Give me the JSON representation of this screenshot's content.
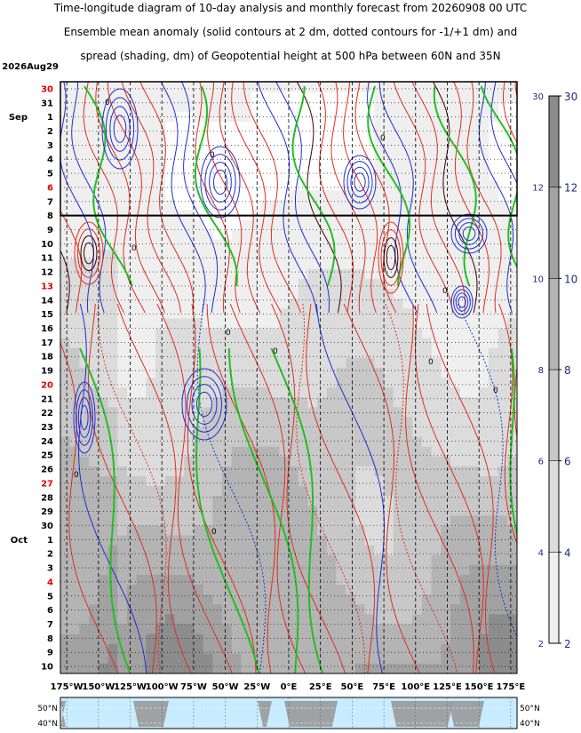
{
  "titles": [
    "Time-longitude diagram of 10-day analysis and monthly forecast from 20260908 00 UTC",
    "Ensemble mean anomaly (solid contours at 2 dm, dotted contours for -1/+1 dm) and",
    "spread (shading, dm) of Geopotential height at 500 hPa between 60N and 35N"
  ],
  "chart_data": {
    "type": "heatmap",
    "x_axis": {
      "ticks": [
        "175°W",
        "150°W",
        "125°W",
        "100°W",
        "75°W",
        "50°W",
        "25°W",
        "0°E",
        "25°E",
        "50°E",
        "75°E",
        "100°E",
        "125°E",
        "150°E",
        "175°E"
      ],
      "range_deg": [
        -180,
        180
      ]
    },
    "y_axis": {
      "start_label": "2026Aug29",
      "days": [
        {
          "label": "30",
          "red": true
        },
        {
          "label": "31",
          "red": false
        },
        {
          "label": "1",
          "red": false,
          "month": "Sep"
        },
        {
          "label": "2",
          "red": false
        },
        {
          "label": "3",
          "red": false
        },
        {
          "label": "4",
          "red": false
        },
        {
          "label": "5",
          "red": false
        },
        {
          "label": "6",
          "red": true
        },
        {
          "label": "7",
          "red": false
        },
        {
          "label": "8",
          "red": false
        },
        {
          "label": "9",
          "red": false
        },
        {
          "label": "10",
          "red": false
        },
        {
          "label": "11",
          "red": false
        },
        {
          "label": "12",
          "red": false
        },
        {
          "label": "13",
          "red": true
        },
        {
          "label": "14",
          "red": false
        },
        {
          "label": "15",
          "red": false
        },
        {
          "label": "16",
          "red": false
        },
        {
          "label": "17",
          "red": false
        },
        {
          "label": "18",
          "red": false
        },
        {
          "label": "19",
          "red": false
        },
        {
          "label": "20",
          "red": true
        },
        {
          "label": "21",
          "red": false
        },
        {
          "label": "22",
          "red": false
        },
        {
          "label": "23",
          "red": false
        },
        {
          "label": "24",
          "red": false
        },
        {
          "label": "25",
          "red": false
        },
        {
          "label": "26",
          "red": false
        },
        {
          "label": "27",
          "red": true
        },
        {
          "label": "28",
          "red": false
        },
        {
          "label": "29",
          "red": false
        },
        {
          "label": "30",
          "red": false
        },
        {
          "label": "1",
          "red": false,
          "month": "Oct"
        },
        {
          "label": "2",
          "red": false
        },
        {
          "label": "3",
          "red": false
        },
        {
          "label": "4",
          "red": true
        },
        {
          "label": "5",
          "red": false
        },
        {
          "label": "6",
          "red": false
        },
        {
          "label": "7",
          "red": false
        },
        {
          "label": "8",
          "red": false
        },
        {
          "label": "9",
          "red": false
        },
        {
          "label": "10",
          "red": false
        }
      ],
      "analysis_end_day_index": 9
    },
    "colorbar": {
      "left_ticks": [
        "2",
        "4",
        "6",
        "8",
        "10",
        "12",
        "30"
      ],
      "right_ticks": [
        "2",
        "4",
        "6",
        "8",
        "10",
        "12",
        "30"
      ],
      "band_shades": [
        "#efefef",
        "#dcdcdc",
        "#c8c8c8",
        "#b4b4b4",
        "#a2a2a2",
        "#8c8c8c"
      ]
    },
    "contour_label": "0",
    "map_strip": {
      "lat_labels": [
        "50°N",
        "40°N"
      ]
    },
    "colors": {
      "positive": "#e03020",
      "negative": "#2030d0",
      "zero": "#22c022",
      "strong_positive": "#400000",
      "ocean": "#c8ecff",
      "land": "#9a9a9a"
    }
  }
}
